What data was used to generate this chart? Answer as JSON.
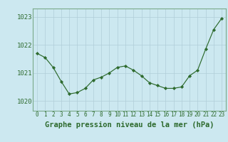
{
  "x": [
    0,
    1,
    2,
    3,
    4,
    5,
    6,
    7,
    8,
    9,
    10,
    11,
    12,
    13,
    14,
    15,
    16,
    17,
    18,
    19,
    20,
    21,
    22,
    23
  ],
  "y": [
    1021.7,
    1021.55,
    1021.2,
    1020.7,
    1020.25,
    1020.3,
    1020.45,
    1020.75,
    1020.85,
    1021.0,
    1021.2,
    1021.25,
    1021.1,
    1020.9,
    1020.65,
    1020.55,
    1020.45,
    1020.45,
    1020.5,
    1020.9,
    1021.1,
    1021.85,
    1022.55,
    1022.95
  ],
  "xlabel": "Graphe pression niveau de la mer (hPa)",
  "ylim_min": 1019.65,
  "ylim_max": 1023.3,
  "yticks": [
    1020,
    1021,
    1022,
    1023
  ],
  "ytick_labels": [
    "1020",
    "1021",
    "1022",
    "1023"
  ],
  "xtick_labels": [
    "0",
    "1",
    "2",
    "3",
    "4",
    "5",
    "6",
    "7",
    "8",
    "9",
    "10",
    "11",
    "12",
    "13",
    "14",
    "15",
    "16",
    "17",
    "18",
    "19",
    "20",
    "21",
    "22",
    "23"
  ],
  "background_color": "#cce8f0",
  "line_color": "#2d6a2d",
  "marker_color": "#2d6a2d",
  "grid_color": "#b0cdd8",
  "tick_color": "#2d6a2d",
  "label_color": "#2d6a2d",
  "spine_color": "#7aaa8a",
  "xlabel_fontsize": 7.5,
  "tick_fontsize": 6.5,
  "xtick_fontsize": 5.5
}
